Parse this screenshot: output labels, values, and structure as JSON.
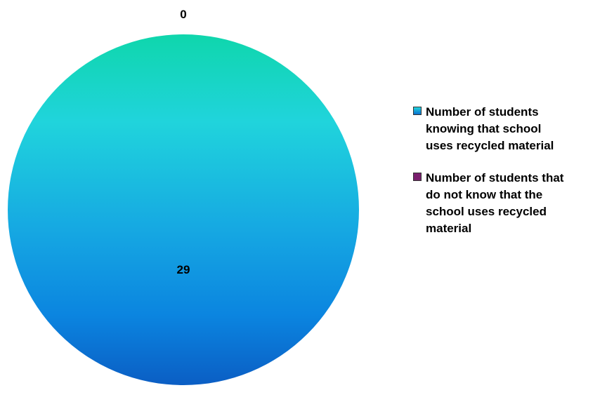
{
  "chart_data": {
    "type": "pie",
    "title": "",
    "slices": [
      {
        "label": "Number of students\nknowing that school\nuses recycled material",
        "value": 29,
        "color": "#1cc8e0"
      },
      {
        "label": "Number of students that\ndo not know that the\nschool uses recycled\nmaterial",
        "value": 0,
        "color": "#7a1f6e"
      }
    ],
    "data_labels": [
      "29",
      "0"
    ],
    "legend_position": "right"
  }
}
